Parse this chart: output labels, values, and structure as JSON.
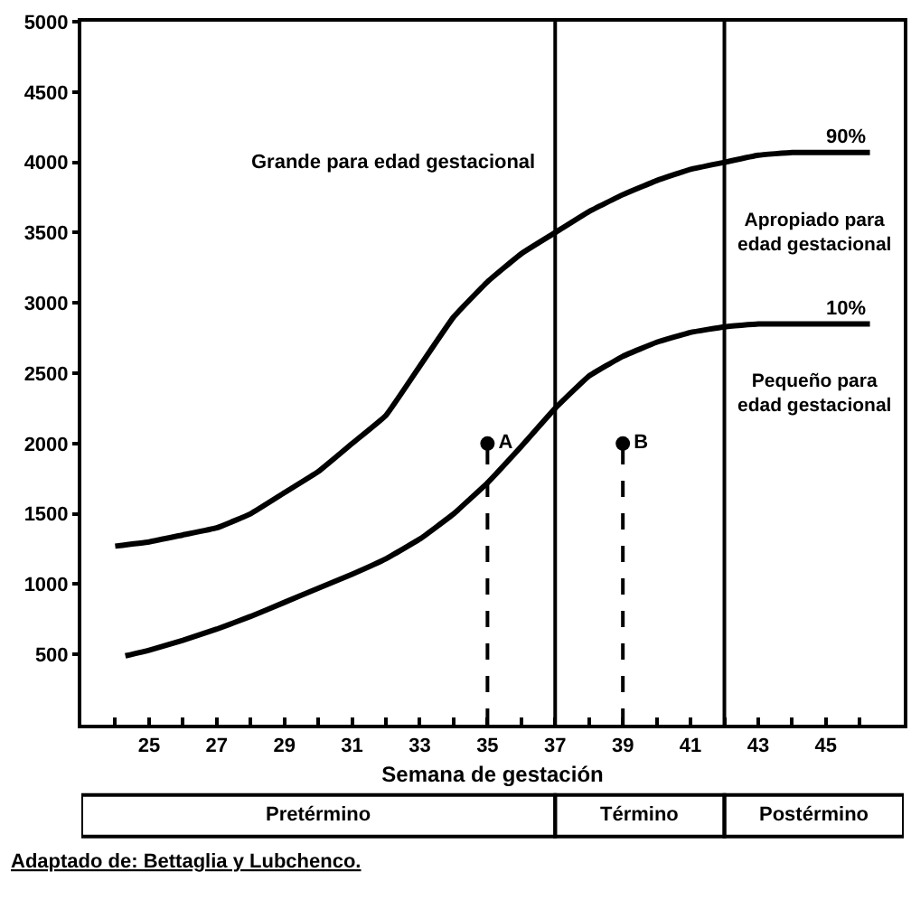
{
  "chart_data": {
    "type": "line",
    "xlabel": "Semana de gestación",
    "xlim": [
      23,
      47.3
    ],
    "ylim": [
      0,
      5000
    ],
    "xticks": [
      {
        "value": 24,
        "label": null
      },
      25,
      {
        "value": 26,
        "label": null
      },
      27,
      {
        "value": 28,
        "label": null
      },
      29,
      {
        "value": 30,
        "label": null
      },
      31,
      {
        "value": 32,
        "label": null
      },
      33,
      {
        "value": 34,
        "label": null
      },
      35,
      {
        "value": 36,
        "label": null
      },
      37,
      {
        "value": 38,
        "label": null
      },
      39,
      {
        "value": 40,
        "label": null
      },
      41,
      {
        "value": 42,
        "label": null
      },
      43,
      {
        "value": 44,
        "label": null
      },
      45,
      {
        "value": 46,
        "label": null
      }
    ],
    "yticks": [
      500,
      1000,
      1500,
      2000,
      2500,
      3000,
      3500,
      4000,
      4500,
      5000
    ],
    "series": [
      {
        "name": "90%",
        "color": "#000000",
        "x": [
          24,
          25,
          26,
          27,
          28,
          29,
          30,
          31,
          32,
          33,
          34,
          35,
          36,
          37,
          38,
          39,
          40,
          41,
          42,
          43,
          44,
          45,
          46.3
        ],
        "values": [
          1270,
          1300,
          1350,
          1400,
          1500,
          1650,
          1800,
          2000,
          2200,
          2550,
          2900,
          3150,
          3350,
          3500,
          3650,
          3770,
          3870,
          3950,
          4000,
          4050,
          4070,
          4070,
          4070
        ]
      },
      {
        "name": "10%",
        "color": "#000000",
        "x": [
          24.3,
          25,
          26,
          27,
          28,
          29,
          30,
          31,
          32,
          33,
          34,
          35,
          36,
          37,
          38,
          39,
          40,
          41,
          42,
          43,
          44,
          45,
          46.3
        ],
        "values": [
          490,
          530,
          600,
          680,
          770,
          870,
          970,
          1070,
          1180,
          1320,
          1500,
          1720,
          1980,
          2250,
          2480,
          2620,
          2720,
          2790,
          2830,
          2850,
          2850,
          2850,
          2850
        ]
      },
      {
        "type": "lollipop",
        "color": "#000000",
        "x": [
          35,
          39
        ],
        "values": [
          2000,
          2000
        ],
        "value_labels": [
          "A",
          "B"
        ],
        "line_style": "dashed",
        "marker": "circle"
      }
    ],
    "ref_lines": [
      {
        "axis": "x",
        "value": 37,
        "color": "#000000"
      },
      {
        "axis": "x",
        "value": 42,
        "color": "#000000"
      }
    ],
    "annotations": [
      "Grande para edad gestacional",
      "Apropiado para\nedad gestacional",
      "Pequeño para\nedad gestacional",
      "Pretérmino",
      "Término",
      "Postérmino",
      "Adaptado de: Bettaglia y Lubchenco."
    ],
    "grid": false,
    "legend": false,
    "marker": "none",
    "line_style": "solid"
  }
}
